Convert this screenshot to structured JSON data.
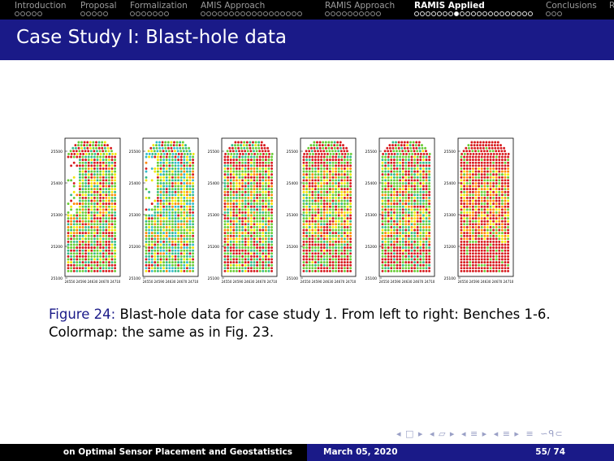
{
  "nav": {
    "sections": [
      {
        "label": "Introduction",
        "dots": 5,
        "filled": -1
      },
      {
        "label": "Proposal",
        "dots": 5,
        "filled": -1
      },
      {
        "label": "Formalization",
        "dots": 7,
        "filled": -1
      },
      {
        "label": "AMIS Approach",
        "dots": 18,
        "filled": -1
      },
      {
        "label": "RAMIS Approach",
        "dots": 10,
        "filled": -1
      },
      {
        "label": "RAMIS Applied",
        "dots": 21,
        "filled": 7,
        "active": true
      },
      {
        "label": "Conclusions",
        "dots": 3,
        "filled": -1
      },
      {
        "label": "R",
        "dots": 0,
        "filled": -1
      }
    ]
  },
  "frame": {
    "title": "Case Study I: Blast-hole data"
  },
  "figure": {
    "caption_label": "Figure 24:",
    "caption_text": "Blast-hole data for case study 1. From left to right: Benches 1-6. Colormap: the same as in Fig. 23.",
    "panels": [
      {
        "name": "Bench 1",
        "y_ticks": [
          "25500",
          "25400",
          "25300",
          "25200",
          "25100"
        ],
        "x_ticks": "24550 24590 24630 24670 24710",
        "red_fraction": 0.25
      },
      {
        "name": "Bench 2",
        "y_ticks": [
          "25500",
          "25400",
          "25300",
          "25200",
          "25100"
        ],
        "x_ticks": "24550 24590 24630 24670 24710",
        "red_fraction": 0.1
      },
      {
        "name": "Bench 3",
        "y_ticks": [
          "25500",
          "25400",
          "25300",
          "25200",
          "25100"
        ],
        "x_ticks": "24550 24590 24630 24670 24710",
        "red_fraction": 0.3
      },
      {
        "name": "Bench 4",
        "y_ticks": [
          "25500",
          "25400",
          "25300",
          "25200",
          "25100"
        ],
        "x_ticks": "24550 24590 24630 24670 24710",
        "red_fraction": 0.35
      },
      {
        "name": "Bench 5",
        "y_ticks": [
          "25500",
          "25400",
          "25300",
          "25200",
          "25100"
        ],
        "x_ticks": "24550 24590 24630 24670 24710",
        "red_fraction": 0.3
      },
      {
        "name": "Bench 6",
        "y_ticks": [
          "25500",
          "25400",
          "25300",
          "25200",
          "25100"
        ],
        "x_ticks": "24550 24590 24630 24670 24710",
        "red_fraction": 0.55
      }
    ],
    "colormap": [
      "#d7191c",
      "#ff8800",
      "#f2e600",
      "#66cc33",
      "#33bb88",
      "#33bbcc"
    ]
  },
  "footer": {
    "title": "on Optimal Sensor Placement and Geostatistics",
    "date": "March 05, 2020",
    "page": "55/ 74"
  }
}
